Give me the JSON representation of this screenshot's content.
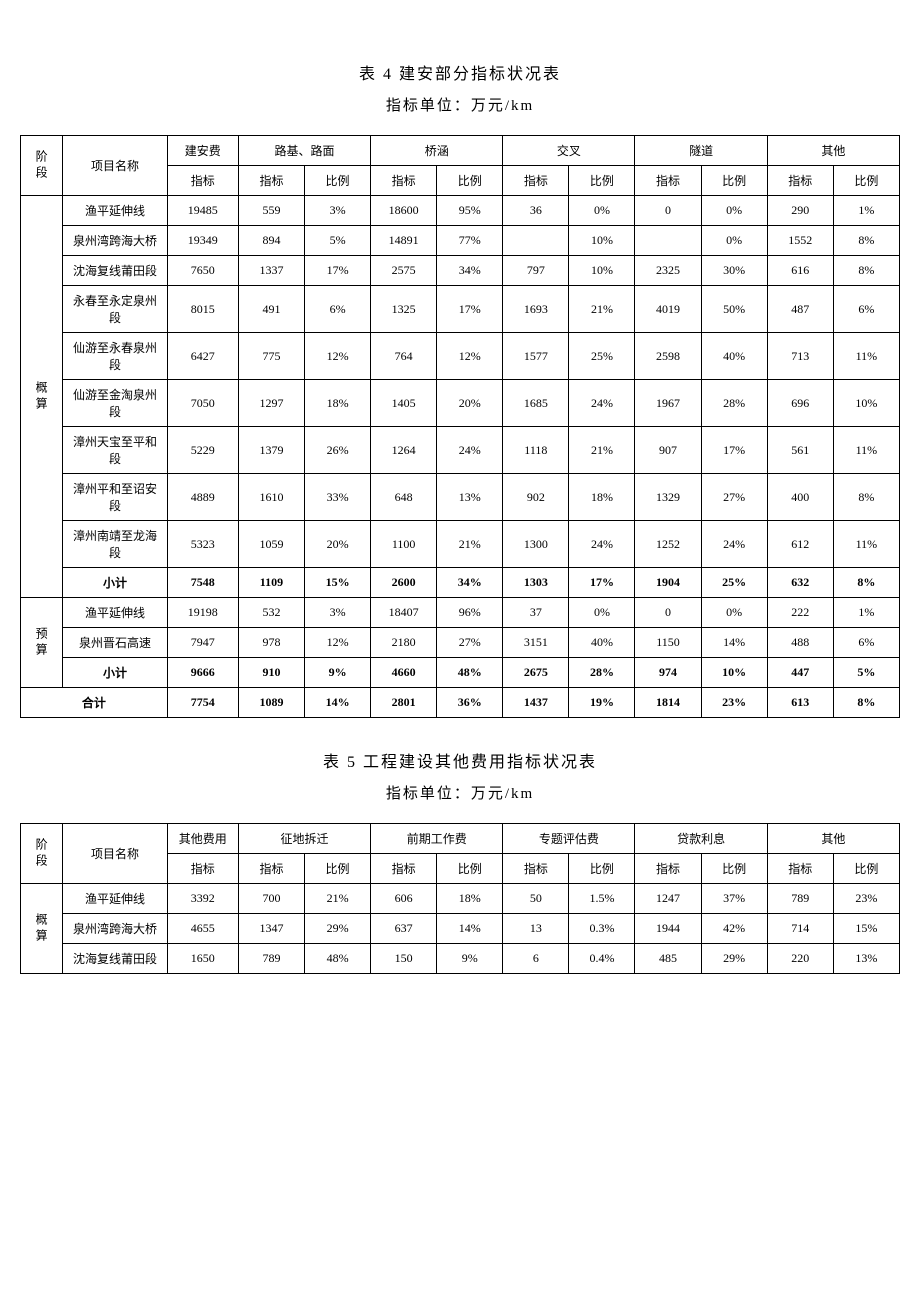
{
  "table4": {
    "title": "表 4  建安部分指标状况表",
    "subtitle": "指标单位：万元/km",
    "headers": {
      "stage": "阶段",
      "project": "项目名称",
      "main": "建安费指标",
      "groups": [
        "路基、路面",
        "桥涵",
        "交叉",
        "隧道",
        "其他"
      ],
      "sub_index": "指标",
      "sub_ratio": "比例"
    },
    "sections": [
      {
        "stage": "概算",
        "rows": [
          {
            "name": "渔平延伸线",
            "main": "19485",
            "v": [
              "559",
              "3%",
              "18600",
              "95%",
              "36",
              "0%",
              "0",
              "0%",
              "290",
              "1%"
            ]
          },
          {
            "name": "泉州湾跨海大桥",
            "main": "19349",
            "v": [
              "894",
              "5%",
              "14891",
              "77%",
              "",
              "10%",
              "",
              "0%",
              "1552",
              "8%"
            ]
          },
          {
            "name": "沈海复线莆田段",
            "main": "7650",
            "v": [
              "1337",
              "17%",
              "2575",
              "34%",
              "797",
              "10%",
              "2325",
              "30%",
              "616",
              "8%"
            ]
          },
          {
            "name": "永春至永定泉州段",
            "main": "8015",
            "v": [
              "491",
              "6%",
              "1325",
              "17%",
              "1693",
              "21%",
              "4019",
              "50%",
              "487",
              "6%"
            ]
          },
          {
            "name": "仙游至永春泉州段",
            "main": "6427",
            "v": [
              "775",
              "12%",
              "764",
              "12%",
              "1577",
              "25%",
              "2598",
              "40%",
              "713",
              "11%"
            ]
          },
          {
            "name": "仙游至金淘泉州段",
            "main": "7050",
            "v": [
              "1297",
              "18%",
              "1405",
              "20%",
              "1685",
              "24%",
              "1967",
              "28%",
              "696",
              "10%"
            ]
          },
          {
            "name": "漳州天宝至平和段",
            "main": "5229",
            "v": [
              "1379",
              "26%",
              "1264",
              "24%",
              "1118",
              "21%",
              "907",
              "17%",
              "561",
              "11%"
            ]
          },
          {
            "name": "漳州平和至诏安段",
            "main": "4889",
            "v": [
              "1610",
              "33%",
              "648",
              "13%",
              "902",
              "18%",
              "1329",
              "27%",
              "400",
              "8%"
            ]
          },
          {
            "name": "漳州南靖至龙海段",
            "main": "5323",
            "v": [
              "1059",
              "20%",
              "1100",
              "21%",
              "1300",
              "24%",
              "1252",
              "24%",
              "612",
              "11%"
            ]
          },
          {
            "name": "小计",
            "main": "7548",
            "v": [
              "1109",
              "15%",
              "2600",
              "34%",
              "1303",
              "17%",
              "1904",
              "25%",
              "632",
              "8%"
            ],
            "bold": true
          }
        ]
      },
      {
        "stage": "预算",
        "rows": [
          {
            "name": "渔平延伸线",
            "main": "19198",
            "v": [
              "532",
              "3%",
              "18407",
              "96%",
              "37",
              "0%",
              "0",
              "0%",
              "222",
              "1%"
            ]
          },
          {
            "name": "泉州晋石高速",
            "main": "7947",
            "v": [
              "978",
              "12%",
              "2180",
              "27%",
              "3151",
              "40%",
              "1150",
              "14%",
              "488",
              "6%"
            ]
          },
          {
            "name": "小计",
            "main": "9666",
            "v": [
              "910",
              "9%",
              "4660",
              "48%",
              "2675",
              "28%",
              "974",
              "10%",
              "447",
              "5%"
            ],
            "bold": true
          }
        ]
      }
    ],
    "total": {
      "name": "合计",
      "main": "7754",
      "v": [
        "1089",
        "14%",
        "2801",
        "36%",
        "1437",
        "19%",
        "1814",
        "23%",
        "613",
        "8%"
      ],
      "bold": true
    }
  },
  "table5": {
    "title": "表 5  工程建设其他费用指标状况表",
    "subtitle": "指标单位：万元/km",
    "headers": {
      "stage": "阶段",
      "project": "项目名称",
      "main": "其他费用指标",
      "groups": [
        "征地拆迁",
        "前期工作费",
        "专题评估费",
        "贷款利息",
        "其他"
      ],
      "sub_index": "指标",
      "sub_ratio": "比例"
    },
    "sections": [
      {
        "stage": "概算",
        "rows": [
          {
            "name": "渔平延伸线",
            "main": "3392",
            "v": [
              "700",
              "21%",
              "606",
              "18%",
              "50",
              "1.5%",
              "1247",
              "37%",
              "789",
              "23%"
            ]
          },
          {
            "name": "泉州湾跨海大桥",
            "main": "4655",
            "v": [
              "1347",
              "29%",
              "637",
              "14%",
              "13",
              "0.3%",
              "1944",
              "42%",
              "714",
              "15%"
            ]
          },
          {
            "name": "沈海复线莆田段",
            "main": "1650",
            "v": [
              "789",
              "48%",
              "150",
              "9%",
              "6",
              "0.4%",
              "485",
              "29%",
              "220",
              "13%"
            ]
          }
        ]
      }
    ]
  }
}
